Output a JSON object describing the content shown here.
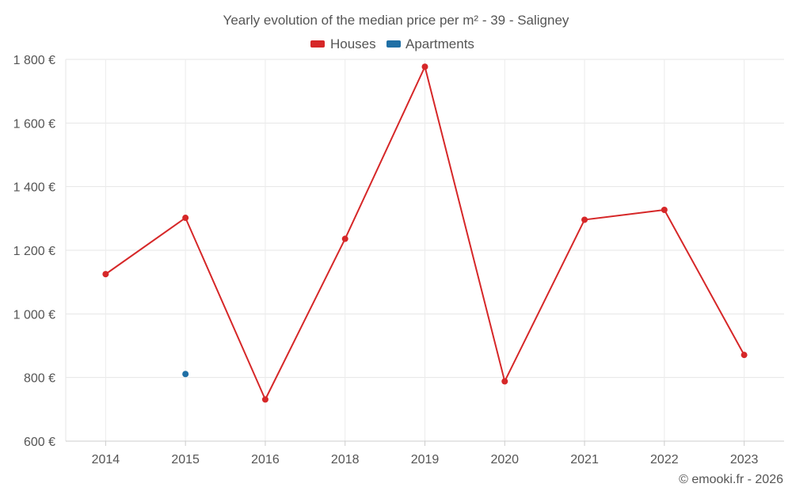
{
  "chart_data": {
    "type": "line",
    "title": "Yearly evolution of the median price per m² - 39 - Saligney",
    "categories": [
      "2014",
      "2015",
      "2016",
      "2018",
      "2019",
      "2020",
      "2021",
      "2022",
      "2023"
    ],
    "series": [
      {
        "name": "Houses",
        "color": "#d62728",
        "values": [
          1125,
          1302,
          731,
          1236,
          1777,
          788,
          1296,
          1327,
          871
        ]
      },
      {
        "name": "Apartments",
        "color": "#1f6fa5",
        "values": [
          null,
          811,
          null,
          null,
          null,
          null,
          null,
          null,
          null
        ]
      }
    ],
    "ylim": [
      600,
      1800
    ],
    "yticks": [
      600,
      800,
      1000,
      1200,
      1400,
      1600,
      1800
    ],
    "ytick_labels": [
      "600 €",
      "800 €",
      "1 000 €",
      "1 200 €",
      "1 400 €",
      "1 600 €",
      "1 800 €"
    ],
    "xlabel": "",
    "ylabel": "",
    "grid": true,
    "legend_position": "top-center"
  },
  "credit": "© emooki.fr - 2026"
}
